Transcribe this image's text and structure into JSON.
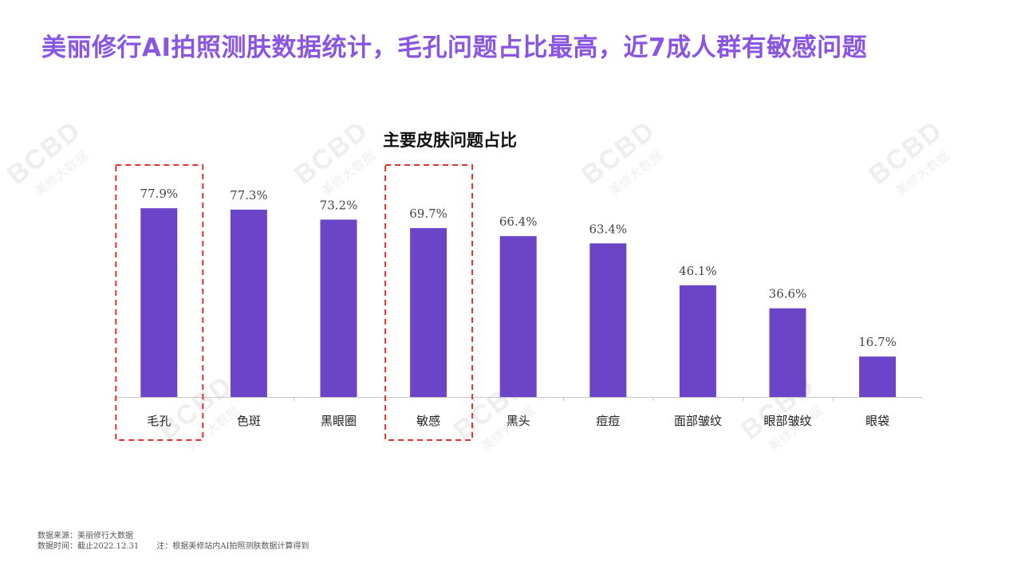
{
  "headline": "美丽修行AI拍照测肤数据统计，毛孔问题占比最高，近7成人群有敏感问题",
  "footnotes": {
    "source": "数据来源：美丽修行大数据",
    "time": "数据时间：截止2022.12.31",
    "note": "注：根据美修站内AI拍照测肤数据计算得到"
  },
  "watermark": {
    "logo": "BCBD",
    "text": "美修大数据"
  },
  "colors": {
    "bar": "#6b44c8",
    "headline": "#8a55e0",
    "highlight": "#e03030",
    "axis": "#c8c8c8"
  },
  "chart_data": {
    "type": "bar",
    "title": "主要皮肤问题占比",
    "categories": [
      "毛孔",
      "色斑",
      "黑眼圈",
      "敏感",
      "黑头",
      "痘痘",
      "面部皱纹",
      "眼部皱纹",
      "眼袋"
    ],
    "values": [
      77.9,
      77.3,
      73.2,
      69.7,
      66.4,
      63.4,
      46.1,
      36.6,
      16.7
    ],
    "value_labels": [
      "77.9%",
      "77.3%",
      "73.2%",
      "69.7%",
      "66.4%",
      "63.4%",
      "46.1%",
      "36.6%",
      "16.7%"
    ],
    "unit": "%",
    "highlighted": [
      "毛孔",
      "敏感"
    ],
    "ylim": [
      0,
      100
    ],
    "grid": false,
    "legend": "none"
  }
}
